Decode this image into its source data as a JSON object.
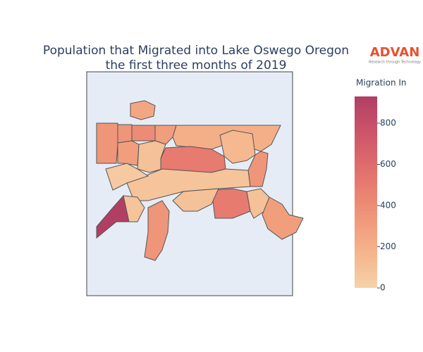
{
  "title": [
    "Population that Migrated into Lake Oswego Oregon",
    "the first three months of 2019"
  ],
  "logo": {
    "name": "ADVAN",
    "tagline": "Research through Technology"
  },
  "chart_data": {
    "type": "choropleth",
    "values": [
      250,
      350,
      350,
      400,
      300,
      200,
      300,
      100,
      500,
      150,
      350,
      80,
      50,
      930,
      80,
      350,
      500,
      100,
      300,
      100
    ],
    "colorbar": {
      "title": "Migration In",
      "zlim": [
        0,
        930
      ],
      "ticks": [
        0,
        200,
        400,
        600,
        800
      ]
    },
    "colorscale": [
      "#f6d2a9",
      "#f5b78e",
      "#f19c7c",
      "#ea8171",
      "#dd686c",
      "#ca5268",
      "#b13f64"
    ],
    "background": "#e5ecf6",
    "border_color": "#555555"
  }
}
